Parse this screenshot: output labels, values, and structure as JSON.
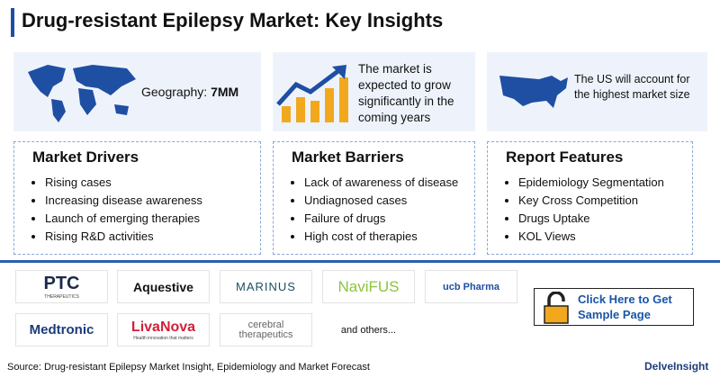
{
  "header": {
    "title": "Drug-resistant Epilepsy Market: Key Insights"
  },
  "highlights": [
    {
      "label": "Geography:",
      "value": "7MM"
    },
    {
      "text": "The market is expected to grow significantly in the coming years"
    },
    {
      "text": "The US will account for the highest market size"
    }
  ],
  "sections": [
    {
      "title": "Market Drivers",
      "items": [
        "Rising cases",
        "Increasing disease awareness",
        "Launch of emerging therapies",
        "Rising R&D activities"
      ]
    },
    {
      "title": "Market Barriers",
      "items": [
        "Lack of awareness of disease",
        "Undiagnosed cases",
        "Failure of drugs",
        "High cost of therapies"
      ]
    },
    {
      "title": "Report Features",
      "items": [
        "Epidemiology Segmentation",
        "Key Cross Competition",
        "Drugs Uptake",
        "KOL Views"
      ]
    }
  ],
  "companies": [
    {
      "name": "PTC",
      "tagline": "THERAPEUTICS"
    },
    {
      "name": "Aquestive"
    },
    {
      "name": "MARINUS"
    },
    {
      "name": "NaviFUS"
    },
    {
      "name": "ucb Pharma"
    },
    {
      "name": "Medtronic"
    },
    {
      "name": "LivaNova",
      "tagline": "Health innovation that matters"
    },
    {
      "name": "cerebral therapeutics"
    },
    {
      "name": "and others..."
    }
  ],
  "cta": "Click Here to Get Sample Page",
  "footer": {
    "source": "Source: Drug-resistant Epilepsy Market Insight, Epidemiology and Market Forecast",
    "brand": "DelveInsight"
  }
}
